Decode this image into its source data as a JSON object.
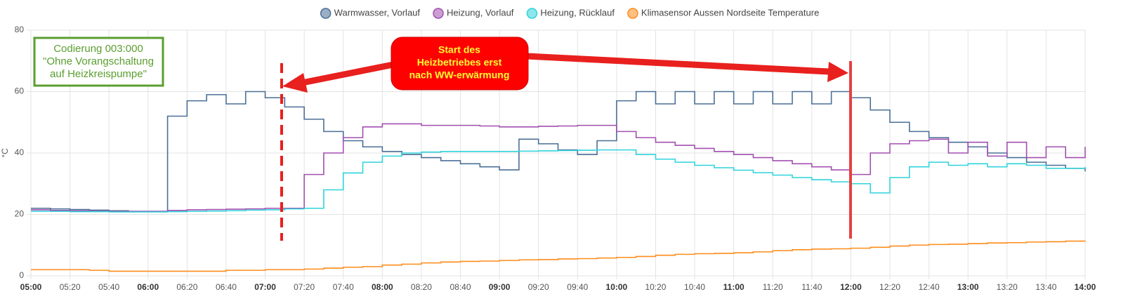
{
  "chart_data": {
    "type": "line",
    "y_label": "°C",
    "x": [
      "05:00",
      "05:10",
      "05:20",
      "05:30",
      "05:40",
      "05:50",
      "06:00",
      "06:10",
      "06:20",
      "06:30",
      "06:40",
      "06:50",
      "07:00",
      "07:10",
      "07:20",
      "07:30",
      "07:40",
      "07:50",
      "08:00",
      "08:10",
      "08:20",
      "08:30",
      "08:40",
      "08:50",
      "09:00",
      "09:10",
      "09:20",
      "09:30",
      "09:40",
      "09:50",
      "10:00",
      "10:10",
      "10:20",
      "10:30",
      "10:40",
      "10:50",
      "11:00",
      "11:10",
      "11:20",
      "11:30",
      "11:40",
      "11:50",
      "12:00",
      "12:10",
      "12:20",
      "12:30",
      "12:40",
      "12:50",
      "13:00",
      "13:10",
      "13:20",
      "13:30",
      "13:40",
      "13:50",
      "14:00"
    ],
    "xticks": [
      "05:00",
      "05:20",
      "05:40",
      "06:00",
      "06:20",
      "06:40",
      "07:00",
      "07:20",
      "07:40",
      "08:00",
      "08:20",
      "08:40",
      "09:00",
      "09:20",
      "09:40",
      "10:00",
      "10:20",
      "10:40",
      "11:00",
      "11:20",
      "11:40",
      "12:00",
      "12:20",
      "12:40",
      "13:00",
      "13:20",
      "13:40",
      "14:00"
    ],
    "ylim": [
      0,
      80
    ],
    "yticks": [
      0,
      20,
      40,
      60,
      80
    ],
    "grid": true,
    "step": true,
    "legend": "top",
    "series": [
      {
        "name": "Warmwasser, Vorlauf",
        "color": "#4a6f96",
        "values": [
          22,
          21.8,
          21.6,
          21.4,
          21.2,
          21,
          21,
          52,
          57,
          59,
          56,
          60,
          58,
          55,
          51,
          47,
          44,
          42,
          40.5,
          39.5,
          38.5,
          37.5,
          36.5,
          35.5,
          34.5,
          44.5,
          43,
          41,
          39.5,
          44,
          57,
          60,
          56,
          60,
          56,
          60,
          56,
          60,
          56,
          60,
          56,
          60,
          58,
          54,
          50,
          47,
          45,
          43.5,
          42,
          40,
          38.5,
          37,
          36,
          35,
          34
        ]
      },
      {
        "name": "Heizung, Vorlauf",
        "color": "#a24fb0",
        "values": [
          21.5,
          21.3,
          21.2,
          21.1,
          21,
          21,
          21,
          21.3,
          21.5,
          21.6,
          21.7,
          21.8,
          22,
          22,
          33,
          40,
          45,
          48.5,
          49.5,
          49.5,
          49,
          49,
          49,
          48.8,
          48.5,
          48.5,
          48.7,
          48.8,
          49,
          49,
          47,
          45,
          43.5,
          42.5,
          41.5,
          40.5,
          39.5,
          38.5,
          37.5,
          36.5,
          35.5,
          34.5,
          33,
          40,
          43,
          44,
          44.5,
          40,
          43.5,
          39,
          43.5,
          38.5,
          42,
          38.5,
          42
        ]
      },
      {
        "name": "Heizung, Rücklauf",
        "color": "#2fd3dc",
        "values": [
          21,
          21,
          20.9,
          20.9,
          20.8,
          20.8,
          20.8,
          20.9,
          21,
          21.1,
          21.2,
          21.4,
          21.5,
          21.8,
          22,
          28,
          33.5,
          37,
          39,
          40,
          40.3,
          40.5,
          40.5,
          40.5,
          40.5,
          40.6,
          40.7,
          40.8,
          40.9,
          41,
          41,
          39.5,
          38,
          37,
          36,
          35.2,
          34.4,
          33.6,
          32.8,
          32,
          31.3,
          30.6,
          30,
          27,
          32,
          35.5,
          37,
          36,
          36.5,
          35.5,
          36.5,
          36,
          35,
          35,
          35.5
        ]
      },
      {
        "name": "Klimasensor Aussen Nordseite Temperature",
        "color": "#ff8c1a",
        "values": [
          2,
          2,
          2,
          1.8,
          1.5,
          1.5,
          1.5,
          1.5,
          1.5,
          1.5,
          1.8,
          1.8,
          2,
          2,
          2.2,
          2.5,
          2.8,
          3,
          3.5,
          3.8,
          4.2,
          4.5,
          4.7,
          4.8,
          5,
          5.2,
          5.3,
          5.5,
          5.6,
          5.8,
          6,
          6.3,
          6.7,
          7,
          7.2,
          7.3,
          7.5,
          7.8,
          8.2,
          8.5,
          8.7,
          8.8,
          9,
          9.3,
          9.7,
          10,
          10.2,
          10.3,
          10.5,
          10.7,
          10.8,
          11,
          11.1,
          11.3,
          11.5
        ]
      }
    ],
    "note_box": [
      "Codierung 003:000",
      "\"Ohne Vorangschaltung",
      "auf Heizkreispumpe\""
    ],
    "callout": [
      "Start des",
      "Heizbetriebes erst",
      "nach WW-erwärmung"
    ]
  }
}
